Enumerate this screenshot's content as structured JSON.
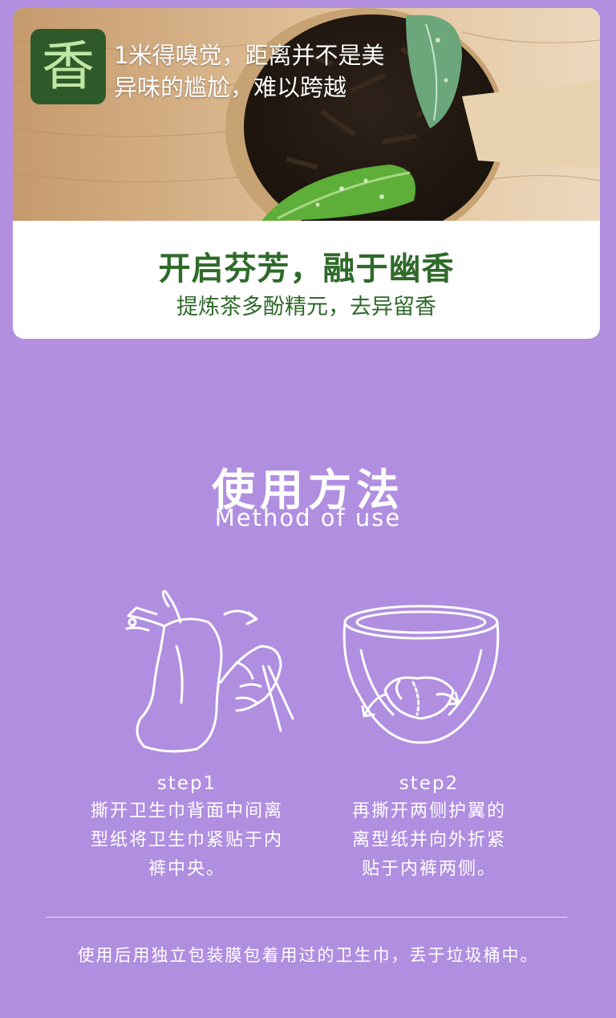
{
  "hero": {
    "badge_char": "香",
    "line1": "1米得嗅觉，距离并不是美",
    "line2": "异味的尴尬，难以跨越"
  },
  "card": {
    "headline": "开启芬芳，融于幽香",
    "subline": "提炼茶多酚精元，去异留香"
  },
  "usage": {
    "title": "使用方法",
    "subtitle": "Method of use",
    "steps": [
      {
        "label": "step1",
        "text_lines": [
          "撕开卫生巾背面中间离",
          "型纸将卫生巾紧贴于内",
          "裤中央。"
        ]
      },
      {
        "label": "step2",
        "text_lines": [
          "再撕开两侧护翼的",
          "离型纸并向外折紧",
          "贴于内裤两侧。"
        ]
      }
    ],
    "footer_note": "使用后用独立包装膜包着用过的卫生巾，丢于垃圾桶中。"
  },
  "colors": {
    "background": "#b08ee0",
    "headline_green": "#2f6a2a",
    "badge_green": "#2e5a2b"
  },
  "icons": [
    "hand-peeling-pad-icon",
    "underwear-with-pad-icon"
  ]
}
